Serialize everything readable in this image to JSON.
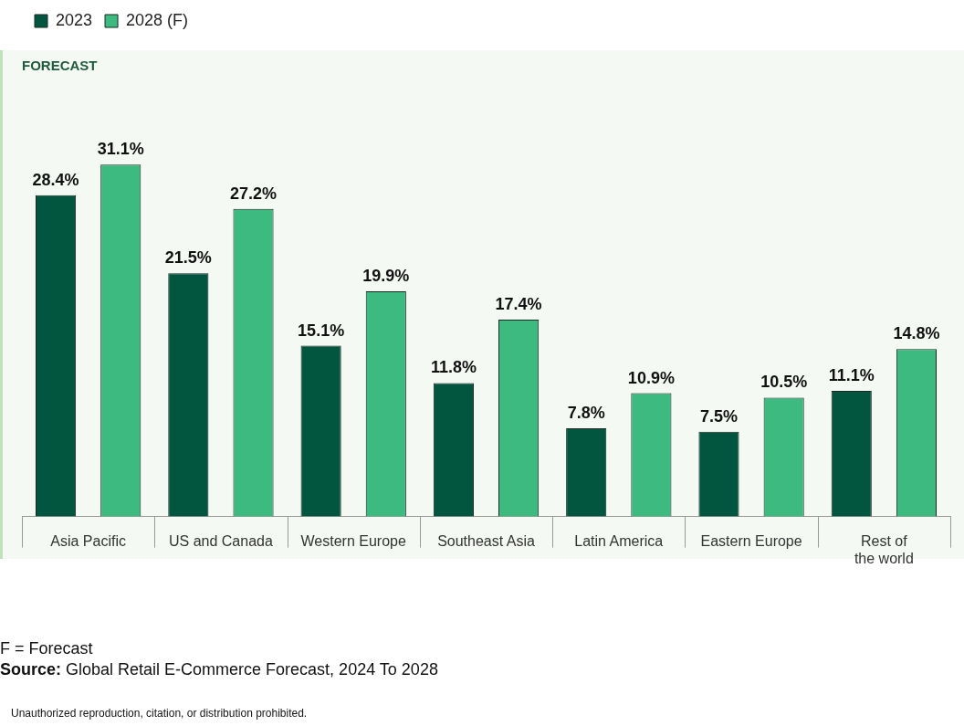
{
  "chart_data": {
    "type": "bar",
    "title": "FORECAST",
    "categories": [
      "Asia Pacific",
      "US and Canada",
      "Western Europe",
      "Southeast Asia",
      "Latin America",
      "Eastern Europe",
      "Rest of the world"
    ],
    "series": [
      {
        "name": "2023",
        "color": "#02553f",
        "values": [
          28.4,
          21.5,
          15.1,
          11.8,
          7.8,
          7.5,
          11.1
        ],
        "value_labels": [
          "28.4%",
          "21.5%",
          "15.1%",
          "11.8%",
          "7.8%",
          "7.5%",
          "11.1%"
        ]
      },
      {
        "name": "2028 (F)",
        "color": "#3dba80",
        "values": [
          31.1,
          27.2,
          19.9,
          17.4,
          10.9,
          10.5,
          14.8
        ],
        "value_labels": [
          "31.1%",
          "27.2%",
          "19.9%",
          "17.4%",
          "10.9%",
          "10.5%",
          "14.8%"
        ]
      }
    ],
    "legend": "top left",
    "grid": false,
    "annotations": [
      "F = Forecast",
      "Source: Global Retail E-Commerce Forecast, 2024 To 2028",
      "Unauthorized reproduction, citation, or distribution prohibited."
    ]
  }
}
